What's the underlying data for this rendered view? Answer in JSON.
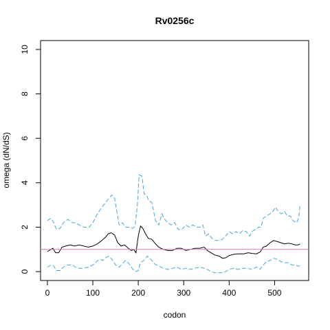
{
  "chart_data": {
    "type": "line",
    "title": "Rv0256c",
    "xlabel": "codon",
    "ylabel": "omega (dN/dS)",
    "xlim": [
      -15,
      575
    ],
    "ylim": [
      -0.4,
      10.4
    ],
    "x_ticks": [
      "0",
      "100",
      "200",
      "300",
      "400",
      "500"
    ],
    "x_tick_values": [
      0,
      100,
      200,
      300,
      400,
      500
    ],
    "y_ticks": [
      "0",
      "2",
      "4",
      "6",
      "8",
      "10"
    ],
    "y_tick_values": [
      0,
      2,
      4,
      6,
      8,
      10
    ],
    "grid": false,
    "reference_line": {
      "y": 1.0,
      "color": "#e377c2"
    },
    "series": [
      {
        "role": "upper",
        "color": "#3fa9e0",
        "dash": "dashed",
        "points": [
          [
            0,
            2.3
          ],
          [
            8,
            2.4
          ],
          [
            14,
            2.2
          ],
          [
            20,
            1.9
          ],
          [
            28,
            1.95
          ],
          [
            35,
            2.2
          ],
          [
            45,
            2.35
          ],
          [
            55,
            2.2
          ],
          [
            62,
            2.2
          ],
          [
            70,
            2.1
          ],
          [
            80,
            2.0
          ],
          [
            92,
            2.0
          ],
          [
            100,
            2.2
          ],
          [
            110,
            2.6
          ],
          [
            120,
            2.9
          ],
          [
            128,
            3.1
          ],
          [
            135,
            3.3
          ],
          [
            142,
            3.45
          ],
          [
            148,
            3.3
          ],
          [
            152,
            2.8
          ],
          [
            158,
            2.1
          ],
          [
            165,
            2.2
          ],
          [
            172,
            2.0
          ],
          [
            180,
            2.0
          ],
          [
            188,
            1.95
          ],
          [
            193,
            2.05
          ],
          [
            198,
            3.0
          ],
          [
            202,
            4.35
          ],
          [
            208,
            4.3
          ],
          [
            213,
            3.5
          ],
          [
            218,
            3.45
          ],
          [
            223,
            3.2
          ],
          [
            230,
            3.1
          ],
          [
            238,
            2.3
          ],
          [
            245,
            2.1
          ],
          [
            252,
            2.6
          ],
          [
            258,
            2.35
          ],
          [
            265,
            2.2
          ],
          [
            272,
            2.1
          ],
          [
            280,
            2.2
          ],
          [
            288,
            1.9
          ],
          [
            296,
            1.9
          ],
          [
            305,
            2.1
          ],
          [
            312,
            2.0
          ],
          [
            320,
            2.1
          ],
          [
            328,
            2.0
          ],
          [
            336,
            2.0
          ],
          [
            342,
            2.1
          ],
          [
            348,
            1.6
          ],
          [
            355,
            1.7
          ],
          [
            362,
            1.5
          ],
          [
            370,
            1.4
          ],
          [
            378,
            1.4
          ],
          [
            385,
            1.45
          ],
          [
            392,
            1.6
          ],
          [
            400,
            1.8
          ],
          [
            408,
            1.7
          ],
          [
            415,
            1.8
          ],
          [
            422,
            1.7
          ],
          [
            430,
            1.85
          ],
          [
            438,
            1.8
          ],
          [
            445,
            1.6
          ],
          [
            450,
            1.8
          ],
          [
            458,
            1.9
          ],
          [
            465,
            2.0
          ],
          [
            470,
            2.0
          ],
          [
            475,
            2.4
          ],
          [
            482,
            2.5
          ],
          [
            490,
            2.6
          ],
          [
            496,
            2.7
          ],
          [
            502,
            2.9
          ],
          [
            508,
            2.7
          ],
          [
            515,
            2.6
          ],
          [
            522,
            2.7
          ],
          [
            528,
            2.5
          ],
          [
            535,
            2.5
          ],
          [
            540,
            2.3
          ],
          [
            548,
            2.2
          ],
          [
            553,
            2.4
          ],
          [
            556,
            3.0
          ]
        ]
      },
      {
        "role": "estimate",
        "color": "#000000",
        "dash": "solid",
        "points": [
          [
            0,
            0.9
          ],
          [
            8,
            1.0
          ],
          [
            12,
            1.05
          ],
          [
            18,
            0.85
          ],
          [
            25,
            0.85
          ],
          [
            32,
            1.1
          ],
          [
            40,
            1.15
          ],
          [
            50,
            1.2
          ],
          [
            60,
            1.15
          ],
          [
            70,
            1.2
          ],
          [
            80,
            1.15
          ],
          [
            90,
            1.1
          ],
          [
            100,
            1.15
          ],
          [
            110,
            1.25
          ],
          [
            120,
            1.4
          ],
          [
            128,
            1.55
          ],
          [
            134,
            1.7
          ],
          [
            140,
            1.75
          ],
          [
            148,
            1.65
          ],
          [
            155,
            1.3
          ],
          [
            162,
            1.15
          ],
          [
            170,
            1.2
          ],
          [
            178,
            1.05
          ],
          [
            185,
            0.95
          ],
          [
            190,
            1.0
          ],
          [
            195,
            0.85
          ],
          [
            200,
            1.6
          ],
          [
            205,
            2.05
          ],
          [
            210,
            1.95
          ],
          [
            216,
            1.7
          ],
          [
            222,
            1.5
          ],
          [
            230,
            1.45
          ],
          [
            238,
            1.25
          ],
          [
            245,
            1.1
          ],
          [
            255,
            1.0
          ],
          [
            265,
            0.95
          ],
          [
            275,
            0.95
          ],
          [
            285,
            1.05
          ],
          [
            295,
            1.05
          ],
          [
            305,
            0.95
          ],
          [
            315,
            1.0
          ],
          [
            325,
            1.05
          ],
          [
            335,
            1.05
          ],
          [
            345,
            1.1
          ],
          [
            352,
            0.95
          ],
          [
            360,
            0.85
          ],
          [
            368,
            0.75
          ],
          [
            378,
            0.7
          ],
          [
            385,
            0.6
          ],
          [
            392,
            0.62
          ],
          [
            400,
            0.72
          ],
          [
            410,
            0.78
          ],
          [
            420,
            0.8
          ],
          [
            432,
            0.8
          ],
          [
            442,
            0.85
          ],
          [
            450,
            0.82
          ],
          [
            460,
            0.8
          ],
          [
            468,
            0.88
          ],
          [
            475,
            1.1
          ],
          [
            482,
            1.15
          ],
          [
            490,
            1.3
          ],
          [
            498,
            1.4
          ],
          [
            506,
            1.35
          ],
          [
            514,
            1.3
          ],
          [
            522,
            1.25
          ],
          [
            530,
            1.28
          ],
          [
            538,
            1.25
          ],
          [
            546,
            1.2
          ],
          [
            552,
            1.2
          ],
          [
            556,
            1.25
          ]
        ]
      },
      {
        "role": "lower",
        "color": "#3fa9e0",
        "dash": "dashed",
        "points": [
          [
            0,
            0.2
          ],
          [
            8,
            0.3
          ],
          [
            14,
            0.25
          ],
          [
            20,
            0.05
          ],
          [
            28,
            0.05
          ],
          [
            35,
            0.2
          ],
          [
            45,
            0.3
          ],
          [
            55,
            0.3
          ],
          [
            62,
            0.2
          ],
          [
            70,
            0.15
          ],
          [
            80,
            0.15
          ],
          [
            90,
            0.2
          ],
          [
            100,
            0.3
          ],
          [
            108,
            0.45
          ],
          [
            115,
            0.55
          ],
          [
            122,
            0.5
          ],
          [
            130,
            0.65
          ],
          [
            136,
            0.7
          ],
          [
            142,
            0.55
          ],
          [
            150,
            0.3
          ],
          [
            158,
            0.2
          ],
          [
            165,
            0.35
          ],
          [
            172,
            0.5
          ],
          [
            180,
            0.35
          ],
          [
            188,
            0.1
          ],
          [
            195,
            0.0
          ],
          [
            200,
            0.05
          ],
          [
            205,
            0.4
          ],
          [
            212,
            0.5
          ],
          [
            220,
            0.7
          ],
          [
            228,
            0.55
          ],
          [
            236,
            0.35
          ],
          [
            245,
            0.25
          ],
          [
            255,
            0.15
          ],
          [
            265,
            0.1
          ],
          [
            275,
            0.15
          ],
          [
            285,
            0.2
          ],
          [
            295,
            0.1
          ],
          [
            305,
            0.15
          ],
          [
            315,
            0.1
          ],
          [
            325,
            0.15
          ],
          [
            335,
            0.2
          ],
          [
            345,
            0.15
          ],
          [
            352,
            0.1
          ],
          [
            360,
            0.0
          ],
          [
            368,
            -0.05
          ],
          [
            378,
            -0.05
          ],
          [
            385,
            -0.05
          ],
          [
            392,
            0.0
          ],
          [
            400,
            0.1
          ],
          [
            410,
            0.15
          ],
          [
            420,
            0.1
          ],
          [
            430,
            0.15
          ],
          [
            440,
            0.15
          ],
          [
            450,
            0.1
          ],
          [
            460,
            0.2
          ],
          [
            468,
            0.1
          ],
          [
            475,
            0.3
          ],
          [
            482,
            0.45
          ],
          [
            490,
            0.5
          ],
          [
            498,
            0.6
          ],
          [
            506,
            0.55
          ],
          [
            514,
            0.45
          ],
          [
            522,
            0.4
          ],
          [
            530,
            0.4
          ],
          [
            538,
            0.3
          ],
          [
            546,
            0.3
          ],
          [
            552,
            0.25
          ],
          [
            556,
            0.25
          ]
        ]
      }
    ]
  }
}
